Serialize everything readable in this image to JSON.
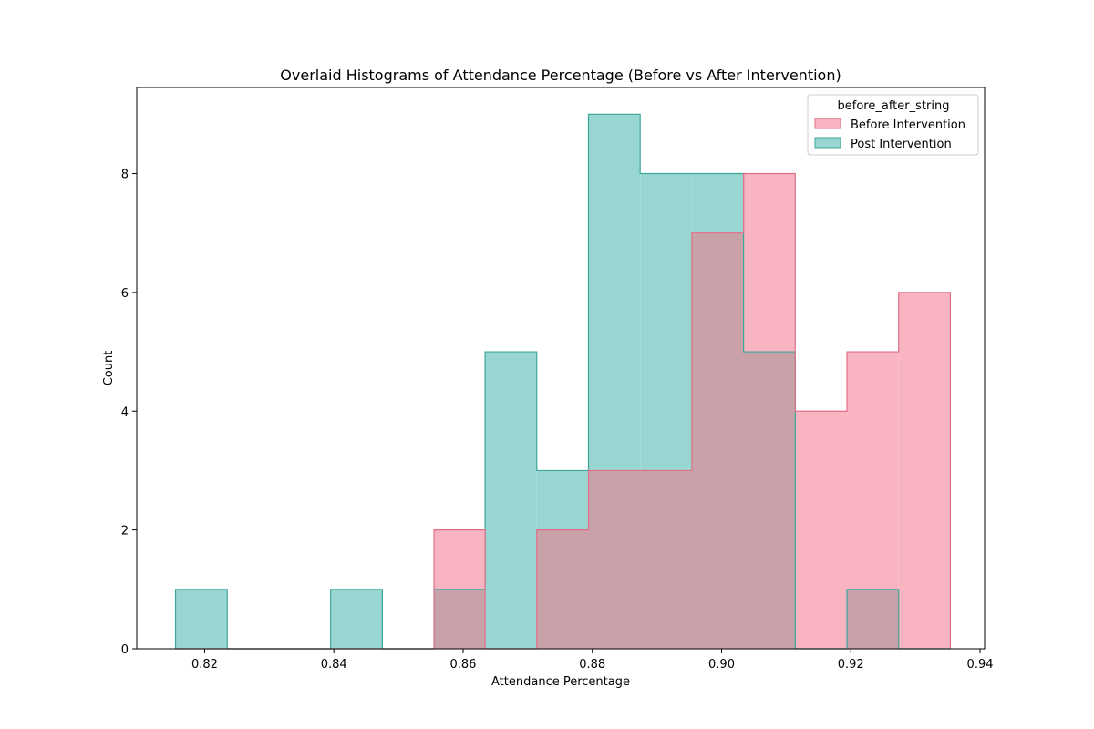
{
  "chart_data": {
    "type": "histogram",
    "title": "Overlaid Histograms of Attendance Percentage (Before vs After Intervention)",
    "xlabel": "Attendance Percentage",
    "ylabel": "Count",
    "xlim": [
      0.8095,
      0.9407
    ],
    "ylim": [
      0,
      9.45
    ],
    "xticks": [
      {
        "value": 0.82,
        "label": "0.82"
      },
      {
        "value": 0.84,
        "label": "0.84"
      },
      {
        "value": 0.86,
        "label": "0.86"
      },
      {
        "value": 0.88,
        "label": "0.88"
      },
      {
        "value": 0.9,
        "label": "0.90"
      },
      {
        "value": 0.92,
        "label": "0.92"
      },
      {
        "value": 0.94,
        "label": "0.94"
      }
    ],
    "yticks": [
      {
        "value": 0,
        "label": "0"
      },
      {
        "value": 2,
        "label": "2"
      },
      {
        "value": 4,
        "label": "4"
      },
      {
        "value": 6,
        "label": "6"
      },
      {
        "value": 8,
        "label": "8"
      }
    ],
    "bin_edges": [
      0.8155,
      0.8235,
      0.8315,
      0.8395,
      0.8475,
      0.8555,
      0.8634,
      0.8714,
      0.8794,
      0.8874,
      0.8954,
      0.9034,
      0.9114,
      0.9194,
      0.9274,
      0.9354
    ],
    "series": [
      {
        "name": "Post Intervention",
        "fill": "#9ad6d1",
        "stroke": "#3aa89a",
        "counts": [
          1,
          0,
          0,
          1,
          0,
          1,
          5,
          3,
          9,
          8,
          8,
          5,
          0,
          1,
          0
        ]
      },
      {
        "name": "Before Intervention",
        "fill": "#f9b4c2",
        "stroke": "#e26f87",
        "counts": [
          0,
          0,
          0,
          0,
          0,
          2,
          0,
          2,
          3,
          3,
          7,
          8,
          4,
          5,
          6
        ]
      }
    ],
    "overlap_fill": "#c8a1a9",
    "legend": {
      "title": "before_after_string",
      "placement": "top-right",
      "entries": [
        {
          "label": "Before Intervention",
          "fill": "#f9b4c2",
          "stroke": "#e26f87"
        },
        {
          "label": "Post Intervention",
          "fill": "#9ad6d1",
          "stroke": "#3aa89a"
        }
      ]
    },
    "grid": false
  }
}
